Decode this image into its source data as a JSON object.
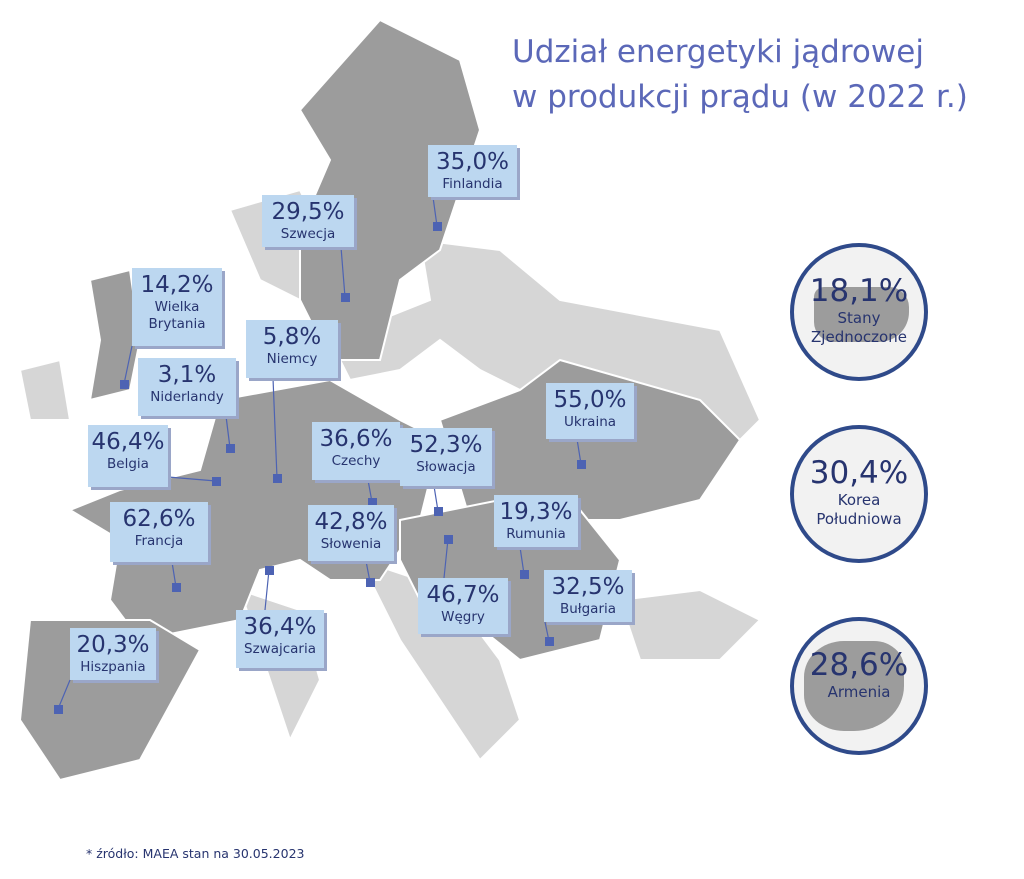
{
  "title": {
    "line1": "Udział energetyki jądrowej",
    "line2": "w produkcji prądu (w 2022 r.)"
  },
  "countries": [
    {
      "value": "35,0%",
      "name": "Finlandia"
    },
    {
      "value": "29,5%",
      "name": "Szwecja"
    },
    {
      "value": "14,2%",
      "name": "Wielka Brytania"
    },
    {
      "value": "5,8%",
      "name": "Niemcy"
    },
    {
      "value": "3,1%",
      "name": "Niderlandy"
    },
    {
      "value": "46,4%",
      "name": "Belgia"
    },
    {
      "value": "36,6%",
      "name": "Czechy"
    },
    {
      "value": "52,3%",
      "name": "Słowacja"
    },
    {
      "value": "55,0%",
      "name": "Ukraina"
    },
    {
      "value": "62,6%",
      "name": "Francja"
    },
    {
      "value": "42,8%",
      "name": "Słowenia"
    },
    {
      "value": "19,3%",
      "name": "Rumunia"
    },
    {
      "value": "32,5%",
      "name": "Bułgaria"
    },
    {
      "value": "46,7%",
      "name": "Węgry"
    },
    {
      "value": "36,4%",
      "name": "Szwajcaria"
    },
    {
      "value": "20,3%",
      "name": "Hiszpania"
    }
  ],
  "outside": [
    {
      "value": "18,1%",
      "name": "Stany Zjednoczone"
    },
    {
      "value": "30,4%",
      "name": "Korea Południowa"
    },
    {
      "value": "28,6%",
      "name": "Armenia"
    }
  ],
  "footnote": "* źródło: MAEA stan na 30.05.2023",
  "colors": {
    "label_bg": "#bcd7f0",
    "text": "#27346f",
    "title": "#5b68b8",
    "highlight_land": "#9c9c9c",
    "other_land": "#d6d6d6",
    "marker": "#4d63b3"
  }
}
